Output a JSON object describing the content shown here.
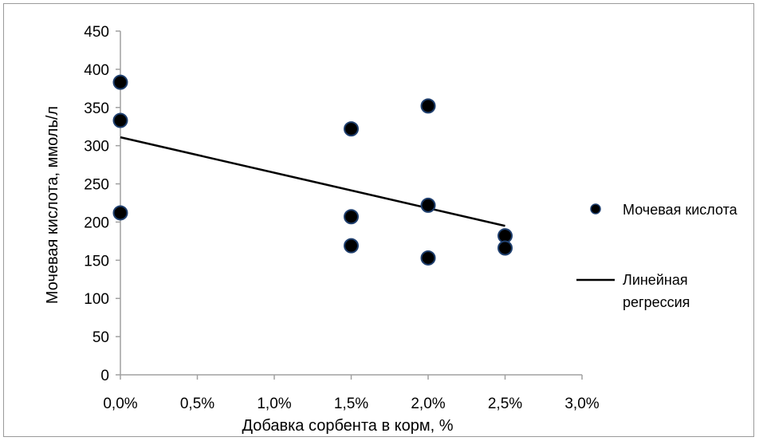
{
  "chart_data": {
    "type": "scatter",
    "xlabel": "Добавка сорбента в корм, %",
    "ylabel": "Мочевая кислота, ммоль/л",
    "xlim": [
      0.0,
      3.0
    ],
    "ylim": [
      0,
      450
    ],
    "x_ticks": [
      0.0,
      0.5,
      1.0,
      1.5,
      2.0,
      2.5,
      3.0
    ],
    "x_tick_labels": [
      "0,0%",
      "0,5%",
      "1,0%",
      "1,5%",
      "2,0%",
      "2,5%",
      "3,0%"
    ],
    "y_ticks": [
      0,
      50,
      100,
      150,
      200,
      250,
      300,
      350,
      400,
      450
    ],
    "y_tick_labels": [
      "0",
      "50",
      "100",
      "150",
      "200",
      "250",
      "300",
      "350",
      "400",
      "450"
    ],
    "grid": false,
    "legend_position": "right",
    "series": [
      {
        "name": "Мочевая кислота",
        "kind": "scatter",
        "x": [
          0.0,
          0.0,
          0.0,
          1.5,
          1.5,
          1.5,
          2.0,
          2.0,
          2.0,
          2.5,
          2.5
        ],
        "y": [
          383,
          333,
          212,
          322,
          207,
          169,
          352,
          222,
          153,
          182,
          166
        ]
      },
      {
        "name": "Линейная регрессия",
        "kind": "line",
        "x": [
          0.0,
          2.5
        ],
        "y": [
          311,
          195
        ]
      }
    ],
    "legend": [
      {
        "label": "Мочевая кислота",
        "marker": "dot"
      },
      {
        "label_lines": [
          "Линейная",
          "регрессия"
        ],
        "marker": "line"
      }
    ]
  },
  "colors": {
    "marker": "#000000",
    "marker_edge": "#1f3f6e",
    "line": "#000000",
    "axis": "#a0a0a0"
  }
}
